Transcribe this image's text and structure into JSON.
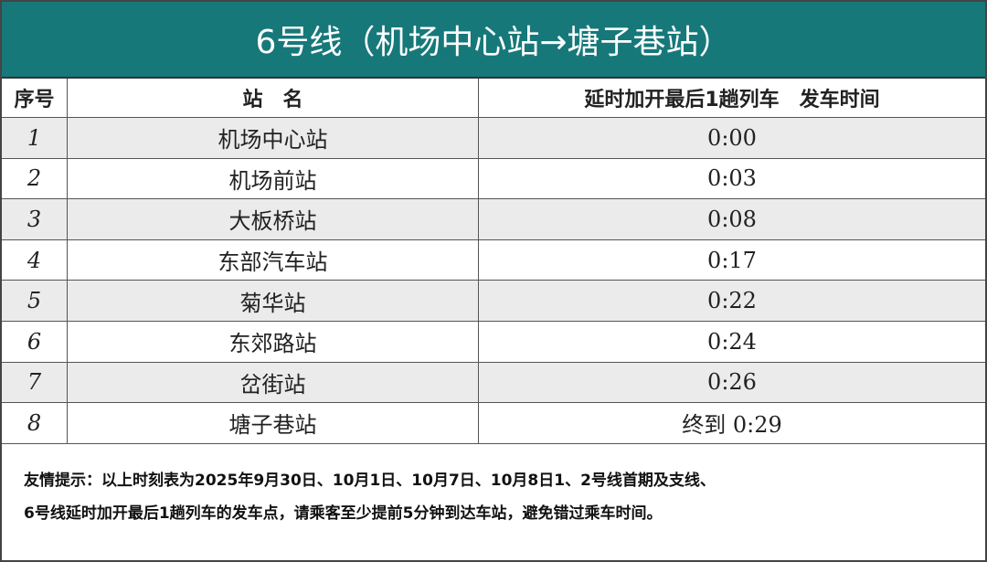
{
  "header": {
    "title": "6号线（机场中心站→塘子巷站）"
  },
  "table": {
    "columns": [
      "序号",
      "站　名",
      "延时加开最后1趟列车　发车时间"
    ],
    "rows": [
      [
        "1",
        "机场中心站",
        "0:00"
      ],
      [
        "2",
        "机场前站",
        "0:03"
      ],
      [
        "3",
        "大板桥站",
        "0:08"
      ],
      [
        "4",
        "东部汽车站",
        "0:17"
      ],
      [
        "5",
        "菊华站",
        "0:22"
      ],
      [
        "6",
        "东郊路站",
        "0:24"
      ],
      [
        "7",
        "岔街站",
        "0:26"
      ],
      [
        "8",
        "塘子巷站",
        "终到 0:29"
      ]
    ]
  },
  "note": {
    "lines": [
      "友情提示：以上时刻表为2025年9月30日、10月1日、10月7日、10月8日1、2号线首期及支线、",
      "6号线延时加开最后1趟列车的发车点，请乘客至少提前5分钟到达车站，避免错过乘车时间。"
    ]
  }
}
